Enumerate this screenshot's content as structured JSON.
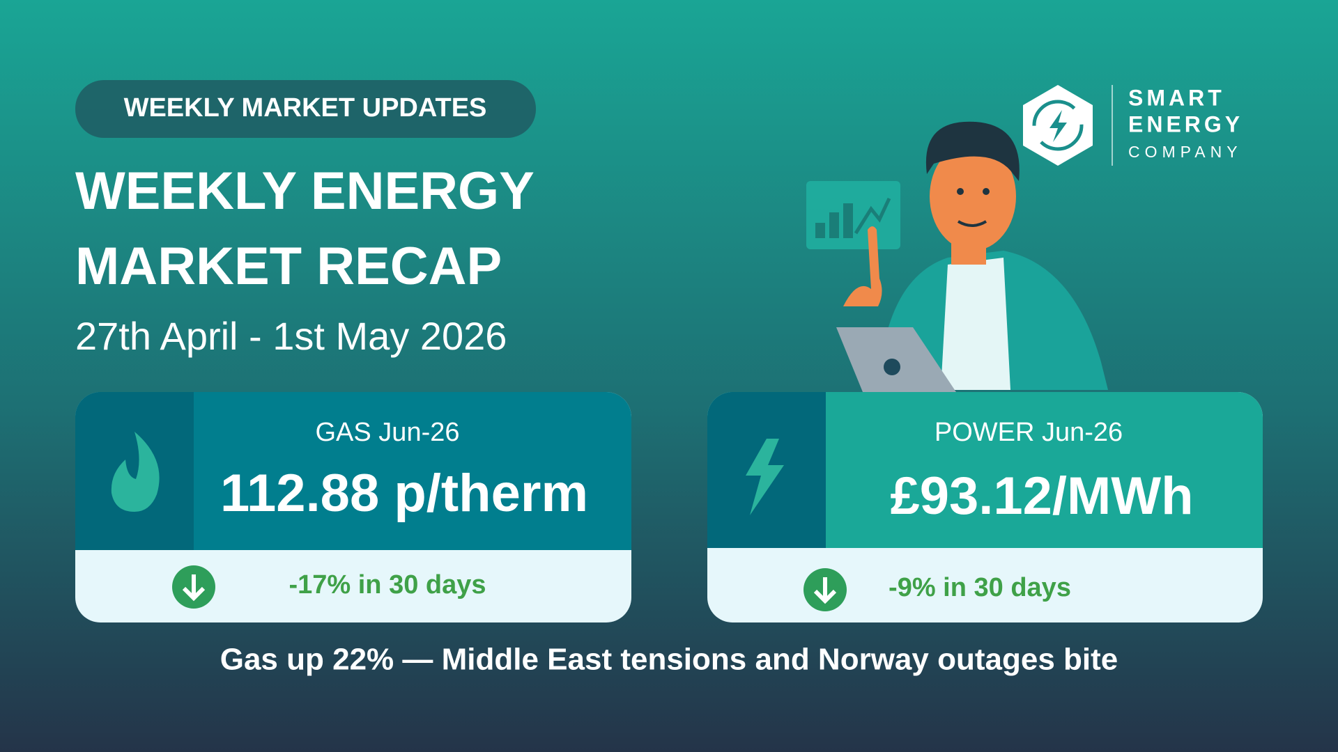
{
  "badge": "WEEKLY MARKET UPDATES",
  "title": {
    "line1": "WEEKLY ENERGY",
    "line2": "MARKET RECAP"
  },
  "date": "27th April - 1st May 2026",
  "logo": {
    "line1": "SMART",
    "line2": "ENERGY",
    "line3": "COMPANY"
  },
  "cards": [
    {
      "label": "GAS Jun-26",
      "price": "112.88 p/therm",
      "change": "-17% in 30 days"
    },
    {
      "label": "POWER Jun-26",
      "price": "£93.12/MWh",
      "change": "-9% in 30 days"
    }
  ],
  "headline": "Gas up 22% — Middle East tensions and Norway outages bite"
}
